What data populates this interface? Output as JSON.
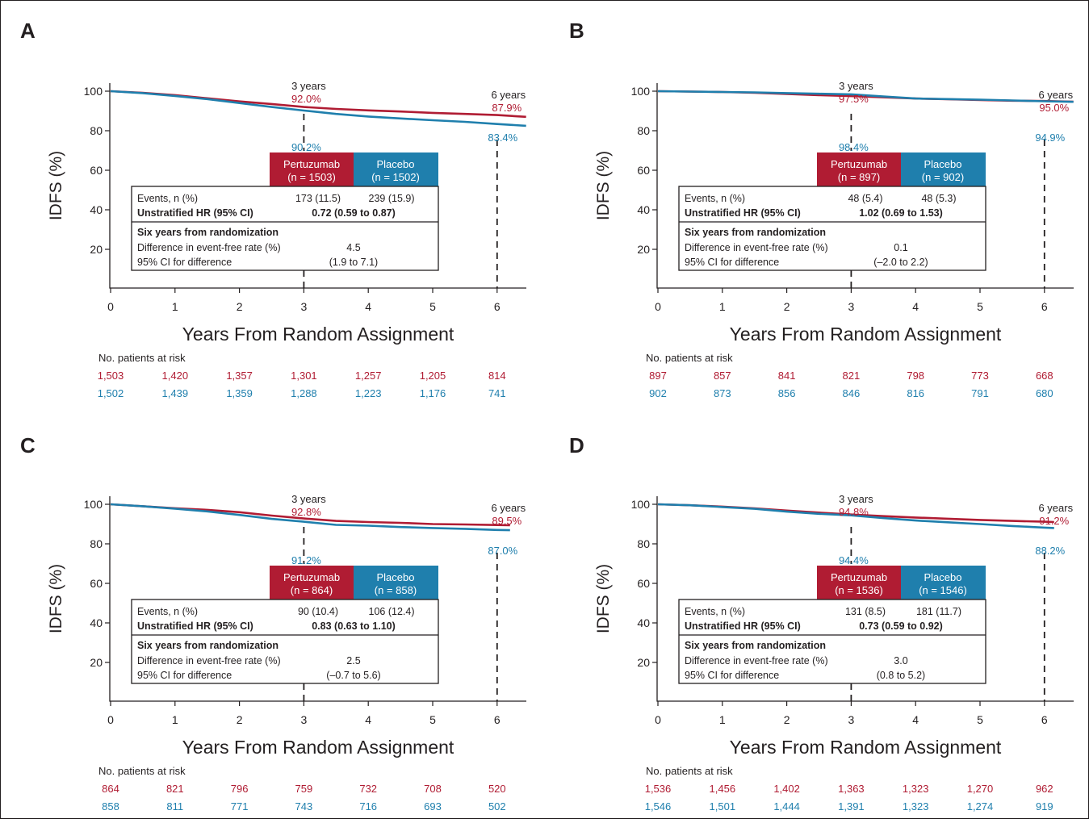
{
  "colors": {
    "pertuzumab": "#b01c33",
    "placebo": "#1f7fad",
    "axis": "#231f20"
  },
  "common": {
    "ylabel": "IDFS (%)",
    "xlabel": "Years From Random Assignment",
    "risk_title": "No. patients at risk",
    "marker_3": "3 years",
    "marker_6": "6 years",
    "arm_pertuzumab": "Pertuzumab",
    "arm_placebo": "Placebo",
    "row_events": "Events, n (%)",
    "row_hr": "Unstratified HR (95% CI)",
    "row_six": "Six years from randomization",
    "row_diff": "Difference in event-free rate (%)",
    "row_ci": "95% CI for difference",
    "y_ticks": [
      "20",
      "40",
      "60",
      "80",
      "100"
    ],
    "x_ticks": [
      "0",
      "1",
      "2",
      "3",
      "4",
      "5",
      "6"
    ]
  },
  "chart_data": [
    {
      "panel": "A",
      "type": "line",
      "xlabel": "Years From Random Assignment",
      "ylabel": "IDFS (%)",
      "xlim": [
        0,
        6.45
      ],
      "ylim": [
        0,
        100
      ],
      "n_pertuzumab": "(n = 1503)",
      "n_placebo": "(n = 1502)",
      "series": [
        {
          "name": "Pertuzumab",
          "x": [
            0,
            0.5,
            1,
            1.5,
            2,
            2.5,
            3,
            3.5,
            4,
            4.5,
            5,
            5.5,
            6,
            6.45
          ],
          "y": [
            100,
            99.2,
            98.0,
            96.4,
            94.8,
            93.5,
            92.0,
            91.0,
            90.3,
            89.7,
            89.0,
            88.5,
            87.9,
            87.0
          ]
        },
        {
          "name": "Placebo",
          "x": [
            0,
            0.5,
            1,
            1.5,
            2,
            2.5,
            3,
            3.5,
            4,
            4.5,
            5,
            5.5,
            6,
            6.45
          ],
          "y": [
            100,
            99.0,
            97.6,
            96.0,
            94.0,
            92.0,
            90.2,
            88.5,
            87.2,
            86.2,
            85.3,
            84.5,
            83.4,
            82.5
          ]
        }
      ],
      "annotations": {
        "p3": "92.0%",
        "b3": "90.2%",
        "p6": "87.9%",
        "b6": "83.4%",
        "events_p": "173 (11.5)",
        "events_b": "239 (15.9)",
        "hr": "0.72 (0.59 to 0.87)",
        "diff": "4.5",
        "ci": "(1.9 to 7.1)"
      },
      "at_risk": {
        "pertuzumab": [
          "1,503",
          "1,420",
          "1,357",
          "1,301",
          "1,257",
          "1,205",
          "814"
        ],
        "placebo": [
          "1,502",
          "1,439",
          "1,359",
          "1,288",
          "1,223",
          "1,176",
          "741"
        ]
      }
    },
    {
      "panel": "B",
      "type": "line",
      "xlabel": "Years From Random Assignment",
      "ylabel": "IDFS (%)",
      "xlim": [
        0,
        6.45
      ],
      "ylim": [
        0,
        100
      ],
      "n_pertuzumab": "(n = 897)",
      "n_placebo": "(n = 902)",
      "series": [
        {
          "name": "Pertuzumab",
          "x": [
            0,
            0.5,
            1,
            1.5,
            2,
            2.5,
            3,
            3.5,
            4,
            4.5,
            5,
            5.5,
            6,
            6.45
          ],
          "y": [
            100,
            99.8,
            99.6,
            99.2,
            98.6,
            98.0,
            97.5,
            96.9,
            96.3,
            95.9,
            95.5,
            95.2,
            95.0,
            94.7
          ]
        },
        {
          "name": "Placebo",
          "x": [
            0,
            0.5,
            1,
            1.5,
            2,
            2.5,
            3,
            3.5,
            4,
            4.5,
            5,
            5.5,
            6,
            6.45
          ],
          "y": [
            100,
            99.8,
            99.6,
            99.4,
            99.0,
            98.7,
            98.4,
            97.3,
            96.3,
            96.0,
            95.7,
            95.3,
            94.9,
            94.6
          ]
        }
      ],
      "annotations": {
        "p3": "97.5%",
        "b3": "98.4%",
        "p6": "95.0%",
        "b6": "94.9%",
        "events_p": "48 (5.4)",
        "events_b": "48 (5.3)",
        "hr": "1.02 (0.69 to 1.53)",
        "diff": "0.1",
        "ci": "(–2.0 to 2.2)"
      },
      "at_risk": {
        "pertuzumab": [
          "897",
          "857",
          "841",
          "821",
          "798",
          "773",
          "668"
        ],
        "placebo": [
          "902",
          "873",
          "856",
          "846",
          "816",
          "791",
          "680"
        ]
      }
    },
    {
      "panel": "C",
      "type": "line",
      "xlabel": "Years From Random Assignment",
      "ylabel": "IDFS (%)",
      "xlim": [
        0,
        6.45
      ],
      "ylim": [
        0,
        100
      ],
      "n_pertuzumab": "(n = 864)",
      "n_placebo": "(n = 858)",
      "series": [
        {
          "name": "Pertuzumab",
          "x": [
            0,
            0.5,
            1,
            1.5,
            2,
            2.5,
            3,
            3.5,
            4,
            4.5,
            5,
            5.5,
            6,
            6.2
          ],
          "y": [
            100,
            99.0,
            98.0,
            97.2,
            96.0,
            94.3,
            92.8,
            91.6,
            91.0,
            90.6,
            90.0,
            89.8,
            89.5,
            89.4
          ]
        },
        {
          "name": "Placebo",
          "x": [
            0,
            0.5,
            1,
            1.5,
            2,
            2.5,
            3,
            3.5,
            4,
            4.5,
            5,
            5.5,
            6,
            6.2
          ],
          "y": [
            100,
            99.0,
            97.8,
            96.4,
            94.6,
            92.6,
            91.2,
            89.6,
            89.2,
            88.5,
            88.0,
            87.6,
            87.0,
            86.9
          ]
        }
      ],
      "annotations": {
        "p3": "92.8%",
        "b3": "91.2%",
        "p6": "89.5%",
        "b6": "87.0%",
        "events_p": "90 (10.4)",
        "events_b": "106 (12.4)",
        "hr": "0.83 (0.63 to 1.10)",
        "diff": "2.5",
        "ci": "(–0.7 to 5.6)"
      },
      "at_risk": {
        "pertuzumab": [
          "864",
          "821",
          "796",
          "759",
          "732",
          "708",
          "520"
        ],
        "placebo": [
          "858",
          "811",
          "771",
          "743",
          "716",
          "693",
          "502"
        ]
      }
    },
    {
      "panel": "D",
      "type": "line",
      "xlabel": "Years From Random Assignment",
      "ylabel": "IDFS (%)",
      "xlim": [
        0,
        6.45
      ],
      "ylim": [
        0,
        100
      ],
      "n_pertuzumab": "(n = 1536)",
      "n_placebo": "(n = 1546)",
      "series": [
        {
          "name": "Pertuzumab",
          "x": [
            0,
            0.5,
            1,
            1.5,
            2,
            2.5,
            3,
            3.5,
            4,
            4.5,
            5,
            5.5,
            6,
            6.15
          ],
          "y": [
            100,
            99.5,
            98.8,
            97.9,
            96.8,
            95.8,
            94.8,
            94.0,
            93.3,
            92.7,
            92.1,
            91.6,
            91.2,
            91.0
          ]
        },
        {
          "name": "Placebo",
          "x": [
            0,
            0.5,
            1,
            1.5,
            2,
            2.5,
            3,
            3.5,
            4,
            4.5,
            5,
            5.5,
            6,
            6.15
          ],
          "y": [
            100,
            99.5,
            98.6,
            97.7,
            96.3,
            95.2,
            94.4,
            93.0,
            91.8,
            90.9,
            90.0,
            89.0,
            88.2,
            88.0
          ]
        }
      ],
      "annotations": {
        "p3": "94.8%",
        "b3": "94.4%",
        "p6": "91.2%",
        "b6": "88.2%",
        "events_p": "131 (8.5)",
        "events_b": "181 (11.7)",
        "hr": "0.73 (0.59 to 0.92)",
        "diff": "3.0",
        "ci": "(0.8 to 5.2)"
      },
      "at_risk": {
        "pertuzumab": [
          "1,536",
          "1,456",
          "1,402",
          "1,363",
          "1,323",
          "1,270",
          "962"
        ],
        "placebo": [
          "1,546",
          "1,501",
          "1,444",
          "1,391",
          "1,323",
          "1,274",
          "919"
        ]
      }
    }
  ]
}
